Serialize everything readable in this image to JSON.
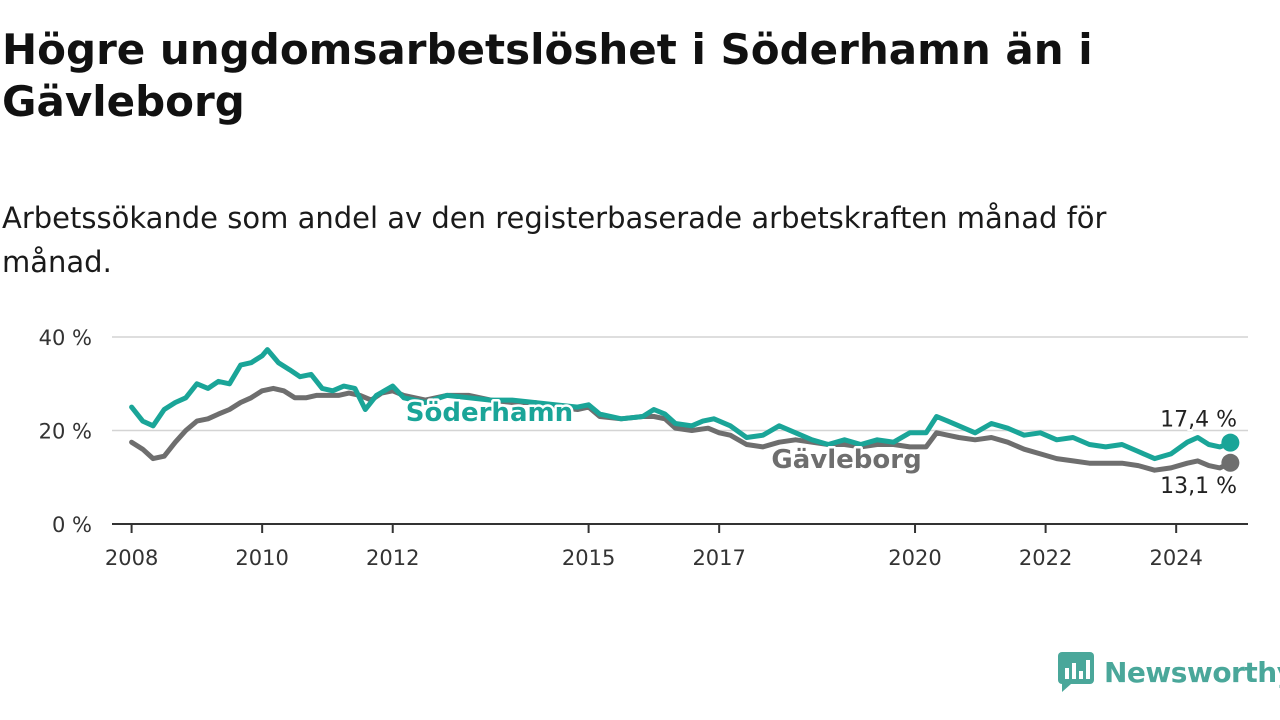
{
  "header": {
    "title": "Högre ungdomsarbetslöshet i Söderhamn än i Gävleborg",
    "subtitle": "Arbetssökande som andel av den registerbaserade arbetskraften månad för månad."
  },
  "brand": {
    "name": "Newsworthy",
    "icon": "newsworthy-logo-icon",
    "color": "#4aa79a"
  },
  "chart_data": {
    "type": "line",
    "x_ticks": [
      "2008",
      "2010",
      "2012",
      "2015",
      "2017",
      "2020",
      "2022",
      "2024"
    ],
    "y_ticks": [
      "0 %",
      "20 %",
      "40 %"
    ],
    "ylim": [
      0,
      40
    ],
    "xlim": [
      2007.7,
      2025.1
    ],
    "grid": true,
    "series": [
      {
        "name": "Söderhamn",
        "color": "#1aa598",
        "end_label": "17,4 %",
        "points": [
          [
            2008.0,
            25
          ],
          [
            2008.17,
            22
          ],
          [
            2008.33,
            21
          ],
          [
            2008.5,
            24.5
          ],
          [
            2008.67,
            26
          ],
          [
            2008.83,
            27
          ],
          [
            2009.0,
            30
          ],
          [
            2009.17,
            29
          ],
          [
            2009.33,
            30.5
          ],
          [
            2009.5,
            30
          ],
          [
            2009.67,
            34
          ],
          [
            2009.83,
            34.5
          ],
          [
            2010.0,
            36
          ],
          [
            2010.08,
            37.3
          ],
          [
            2010.25,
            34.5
          ],
          [
            2010.42,
            33
          ],
          [
            2010.58,
            31.5
          ],
          [
            2010.75,
            32
          ],
          [
            2010.92,
            29
          ],
          [
            2011.08,
            28.5
          ],
          [
            2011.25,
            29.5
          ],
          [
            2011.42,
            29
          ],
          [
            2011.58,
            24.5
          ],
          [
            2011.75,
            27.5
          ],
          [
            2012.0,
            29.5
          ],
          [
            2012.17,
            27
          ],
          [
            2012.5,
            26
          ],
          [
            2012.83,
            27.5
          ],
          [
            2013.17,
            27
          ],
          [
            2013.5,
            26.5
          ],
          [
            2013.83,
            26.5
          ],
          [
            2014.17,
            26
          ],
          [
            2014.5,
            25.5
          ],
          [
            2014.83,
            25
          ],
          [
            2015.0,
            25.5
          ],
          [
            2015.17,
            23.5
          ],
          [
            2015.5,
            22.5
          ],
          [
            2015.83,
            23
          ],
          [
            2016.0,
            24.5
          ],
          [
            2016.17,
            23.5
          ],
          [
            2016.33,
            21.5
          ],
          [
            2016.58,
            21
          ],
          [
            2016.75,
            22
          ],
          [
            2016.92,
            22.5
          ],
          [
            2017.17,
            21
          ],
          [
            2017.42,
            18.5
          ],
          [
            2017.67,
            19
          ],
          [
            2017.92,
            21
          ],
          [
            2018.17,
            19.5
          ],
          [
            2018.42,
            18
          ],
          [
            2018.67,
            17
          ],
          [
            2018.92,
            18
          ],
          [
            2019.17,
            17
          ],
          [
            2019.42,
            18
          ],
          [
            2019.67,
            17.5
          ],
          [
            2019.92,
            19.5
          ],
          [
            2020.17,
            19.5
          ],
          [
            2020.33,
            23
          ],
          [
            2020.5,
            22
          ],
          [
            2020.67,
            21
          ],
          [
            2020.92,
            19.5
          ],
          [
            2021.17,
            21.5
          ],
          [
            2021.42,
            20.5
          ],
          [
            2021.67,
            19
          ],
          [
            2021.92,
            19.5
          ],
          [
            2022.17,
            18
          ],
          [
            2022.42,
            18.5
          ],
          [
            2022.67,
            17
          ],
          [
            2022.92,
            16.5
          ],
          [
            2023.17,
            17
          ],
          [
            2023.42,
            15.5
          ],
          [
            2023.67,
            14
          ],
          [
            2023.92,
            15
          ],
          [
            2024.17,
            17.5
          ],
          [
            2024.33,
            18.5
          ],
          [
            2024.5,
            17
          ],
          [
            2024.67,
            16.5
          ],
          [
            2024.83,
            17.4
          ]
        ]
      },
      {
        "name": "Gävleborg",
        "color": "#6e6e6e",
        "end_label": "13,1 %",
        "points": [
          [
            2008.0,
            17.5
          ],
          [
            2008.17,
            16
          ],
          [
            2008.33,
            14
          ],
          [
            2008.5,
            14.5
          ],
          [
            2008.67,
            17.5
          ],
          [
            2008.83,
            20
          ],
          [
            2009.0,
            22
          ],
          [
            2009.17,
            22.5
          ],
          [
            2009.33,
            23.5
          ],
          [
            2009.5,
            24.5
          ],
          [
            2009.67,
            26
          ],
          [
            2009.83,
            27
          ],
          [
            2010.0,
            28.5
          ],
          [
            2010.17,
            29
          ],
          [
            2010.33,
            28.5
          ],
          [
            2010.5,
            27
          ],
          [
            2010.67,
            27
          ],
          [
            2010.83,
            27.5
          ],
          [
            2011.0,
            27.5
          ],
          [
            2011.17,
            27.5
          ],
          [
            2011.33,
            28
          ],
          [
            2011.5,
            27.5
          ],
          [
            2011.67,
            26.5
          ],
          [
            2011.83,
            28
          ],
          [
            2012.0,
            28.5
          ],
          [
            2012.17,
            27.5
          ],
          [
            2012.5,
            26.5
          ],
          [
            2012.83,
            27.5
          ],
          [
            2013.17,
            27.5
          ],
          [
            2013.5,
            26.5
          ],
          [
            2013.83,
            26
          ],
          [
            2014.17,
            26
          ],
          [
            2014.5,
            25
          ],
          [
            2014.83,
            24.5
          ],
          [
            2015.0,
            25
          ],
          [
            2015.17,
            23
          ],
          [
            2015.5,
            22.5
          ],
          [
            2015.83,
            23
          ],
          [
            2016.0,
            23
          ],
          [
            2016.17,
            22.5
          ],
          [
            2016.33,
            20.5
          ],
          [
            2016.58,
            20
          ],
          [
            2016.83,
            20.5
          ],
          [
            2017.0,
            19.5
          ],
          [
            2017.17,
            19
          ],
          [
            2017.42,
            17
          ],
          [
            2017.67,
            16.5
          ],
          [
            2017.92,
            17.5
          ],
          [
            2018.17,
            18
          ],
          [
            2018.42,
            17.5
          ],
          [
            2018.67,
            17
          ],
          [
            2018.92,
            17
          ],
          [
            2019.17,
            16.5
          ],
          [
            2019.42,
            17
          ],
          [
            2019.67,
            17
          ],
          [
            2019.92,
            16.5
          ],
          [
            2020.17,
            16.5
          ],
          [
            2020.33,
            19.5
          ],
          [
            2020.5,
            19
          ],
          [
            2020.67,
            18.5
          ],
          [
            2020.92,
            18
          ],
          [
            2021.17,
            18.5
          ],
          [
            2021.42,
            17.5
          ],
          [
            2021.67,
            16
          ],
          [
            2021.92,
            15
          ],
          [
            2022.17,
            14
          ],
          [
            2022.42,
            13.5
          ],
          [
            2022.67,
            13
          ],
          [
            2022.92,
            13
          ],
          [
            2023.17,
            13
          ],
          [
            2023.42,
            12.5
          ],
          [
            2023.67,
            11.5
          ],
          [
            2023.92,
            12
          ],
          [
            2024.17,
            13
          ],
          [
            2024.33,
            13.5
          ],
          [
            2024.5,
            12.5
          ],
          [
            2024.67,
            12
          ],
          [
            2024.83,
            13.1
          ]
        ]
      }
    ]
  }
}
